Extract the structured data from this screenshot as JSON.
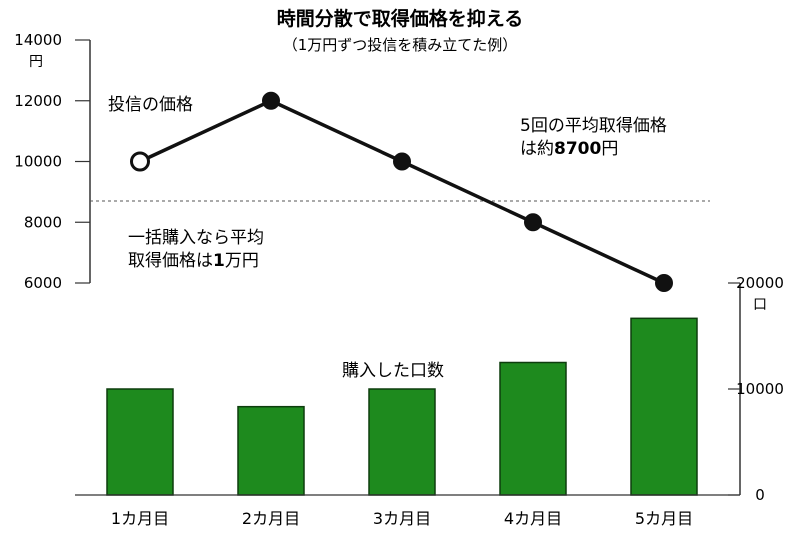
{
  "chart_data": {
    "type": "bar+line",
    "title": "時間分散で取得価格を抑える",
    "subtitle": "（1万円ずつ投信を積み立てた例）",
    "categories": [
      "1カ月目",
      "2カ月目",
      "3カ月目",
      "4カ月目",
      "5カ月目"
    ],
    "price_series": {
      "name": "投信の価格",
      "values": [
        10000,
        12000,
        10000,
        8000,
        6000
      ],
      "first_point_hollow": true
    },
    "units_series": {
      "name": "購入した口数",
      "values": [
        10000,
        8333,
        10000,
        12500,
        16667
      ]
    },
    "left_axis": {
      "unit": "円",
      "ticks": [
        "14000",
        "12000",
        "10000",
        "8000",
        "6000"
      ],
      "ylim": [
        6000,
        14000
      ]
    },
    "right_axis": {
      "unit": "口",
      "ticks": [
        "20000",
        "10000",
        "0"
      ],
      "ylim": [
        0,
        20000
      ]
    },
    "average_line": {
      "value": 8700,
      "style": "dashed"
    },
    "annotations": {
      "average_text": [
        "5回の平均取得価格",
        "は約",
        "8700",
        "円"
      ],
      "lump_sum_text": [
        "一括購入なら平均",
        "取得価格は",
        "1",
        "万円"
      ]
    },
    "colors": {
      "bar": "#1e8a1e",
      "bar_edge": "#0d3d0d",
      "line": "#111111",
      "dash": "#555555"
    }
  }
}
